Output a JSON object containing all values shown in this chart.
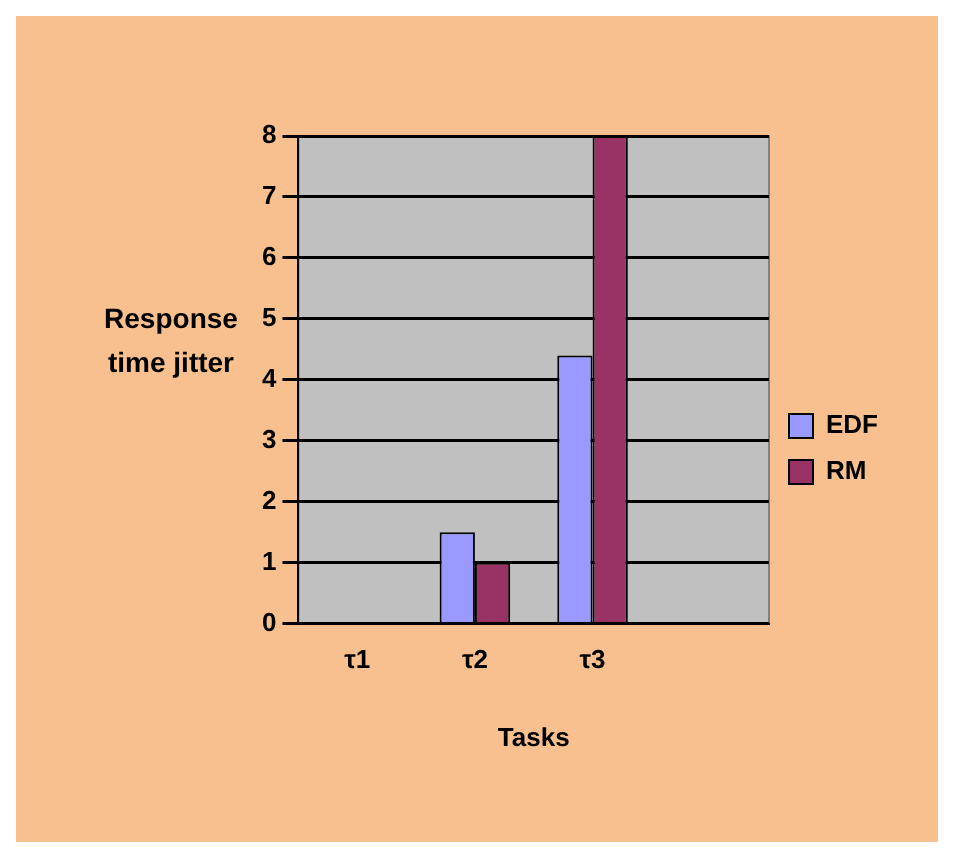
{
  "chart_data": {
    "type": "bar",
    "xlabel": "Tasks",
    "ylabel": "Response time jitter",
    "categories": [
      "τ1",
      "τ2",
      "τ3",
      null
    ],
    "series": [
      {
        "name": "EDF",
        "color": "#9999ff",
        "values": [
          0,
          1.5,
          4.4,
          null
        ]
      },
      {
        "name": "RM",
        "color": "#993366",
        "values": [
          0,
          1,
          8,
          null
        ]
      }
    ],
    "ylim": [
      0,
      8
    ],
    "yticks": [
      0,
      1,
      2,
      3,
      4,
      5,
      6,
      7,
      8
    ],
    "grid": "y",
    "legend": "right"
  }
}
